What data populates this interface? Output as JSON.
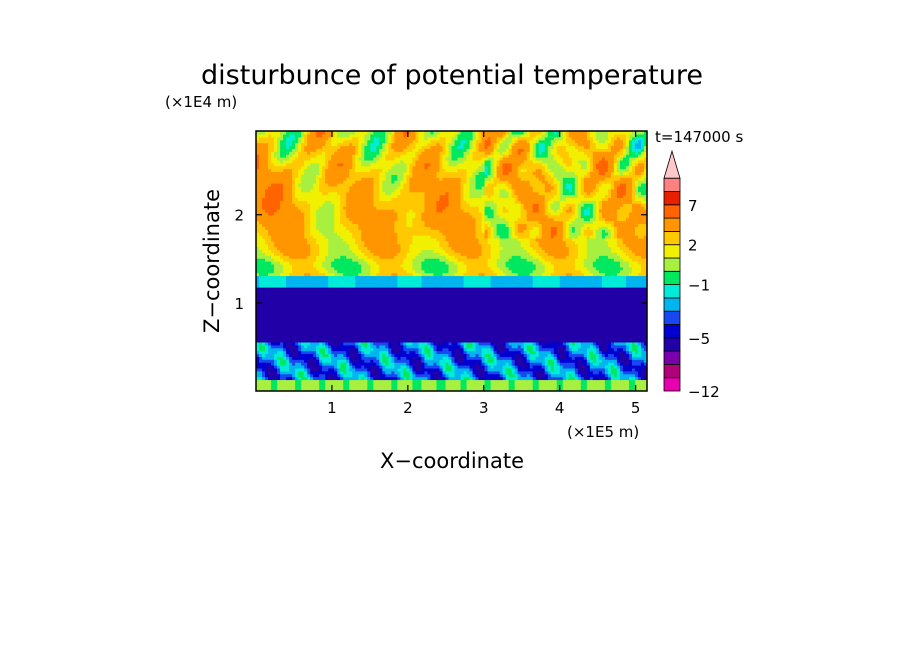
{
  "chart_data": {
    "type": "heatmap",
    "title": "disturbunce of potential temperature",
    "xlabel": "X−coordinate",
    "ylabel": "Z−coordinate",
    "x_unit": "(×1E5 m)",
    "y_unit": "(×1E4 m)",
    "time_label": "t=147000 s",
    "xlim": [
      0,
      5.15
    ],
    "ylim": [
      0,
      2.95
    ],
    "x_ticks": [
      1,
      2,
      3,
      4,
      5
    ],
    "x_tick_labels": [
      "1",
      "2",
      "3",
      "4",
      "5"
    ],
    "y_ticks": [
      1,
      2
    ],
    "y_tick_labels": [
      "1",
      "2"
    ],
    "colorbar": {
      "levels": [
        -12,
        -10,
        -8,
        -6,
        -5,
        -4,
        -3,
        -2,
        -1,
        0,
        1,
        2,
        3,
        5,
        7,
        9,
        11
      ],
      "tick_values": [
        -12,
        -5,
        -1,
        2,
        7
      ],
      "tick_labels": [
        "−12",
        "−5",
        "−1",
        "2",
        "7"
      ],
      "colors": [
        "#e800b0",
        "#b0007a",
        "#7a00aa",
        "#2200a8",
        "#0000d0",
        "#1848f0",
        "#00b4f0",
        "#00ebd8",
        "#00e860",
        "#a8f040",
        "#f0f000",
        "#ffc800",
        "#ff9600",
        "#ff6400",
        "#e82000",
        "#ff8080",
        "#ffc8c8"
      ],
      "extend_max": true
    },
    "field_description": "layered disturbance field: positive anomalies (yellow/orange) in upper layer 1.3–2.95, strong negative band (dark blue) around z=0.5–1.2, weak anomalies near ground"
  }
}
